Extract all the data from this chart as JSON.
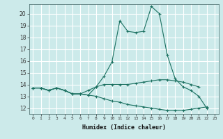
{
  "title": "",
  "xlabel": "Humidex (Indice chaleur)",
  "bg_color": "#cceaea",
  "line_color": "#1a7060",
  "grid_color": "#aad4d4",
  "xlim": [
    -0.5,
    23.5
  ],
  "ylim": [
    11.5,
    20.8
  ],
  "xticks": [
    0,
    1,
    2,
    3,
    4,
    5,
    6,
    7,
    8,
    9,
    10,
    11,
    12,
    13,
    14,
    15,
    16,
    17,
    18,
    19,
    20,
    21,
    22,
    23
  ],
  "yticks": [
    12,
    13,
    14,
    15,
    16,
    17,
    18,
    19,
    20
  ],
  "series": [
    [
      13.7,
      13.7,
      13.5,
      13.7,
      13.5,
      13.2,
      13.2,
      13.1,
      13.8,
      14.7,
      15.9,
      19.4,
      18.5,
      18.4,
      18.5,
      20.6,
      20.0,
      16.5,
      14.5,
      13.8,
      13.5,
      13.0,
      12.0,
      null
    ],
    [
      13.7,
      13.7,
      13.5,
      13.7,
      13.5,
      13.2,
      13.2,
      13.5,
      13.8,
      14.0,
      14.0,
      14.0,
      14.0,
      14.1,
      14.2,
      14.3,
      14.4,
      14.4,
      14.3,
      14.2,
      14.0,
      13.8,
      null,
      null
    ],
    [
      13.7,
      13.7,
      13.5,
      13.7,
      13.5,
      13.2,
      13.2,
      13.1,
      13.0,
      12.8,
      12.6,
      12.5,
      12.3,
      12.2,
      12.1,
      12.0,
      11.9,
      11.8,
      11.8,
      11.8,
      11.9,
      12.0,
      12.1,
      null
    ]
  ]
}
